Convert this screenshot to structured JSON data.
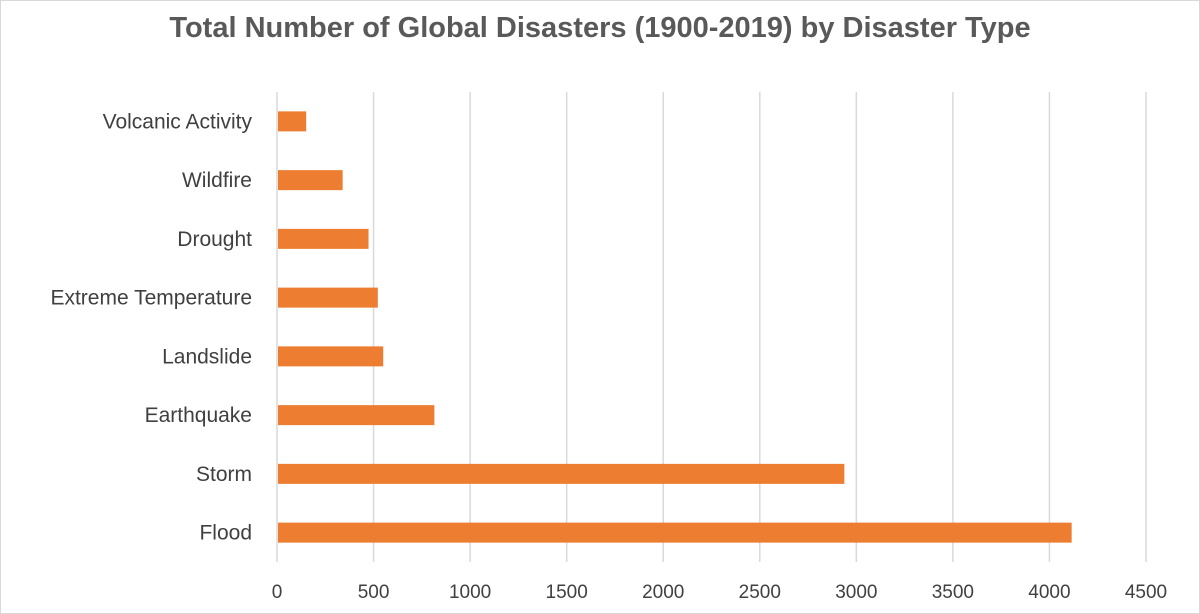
{
  "chart_data": {
    "type": "bar",
    "orientation": "horizontal",
    "title": "Total Number of Global Disasters (1900-2019) by Disaster Type",
    "xlabel": "",
    "ylabel": "",
    "categories": [
      "Volcanic Activity",
      "Wildfire",
      "Drought",
      "Extreme Temperature",
      "Landslide",
      "Earthquake",
      "Storm",
      "Flood"
    ],
    "values": [
      151,
      340,
      474,
      522,
      550,
      815,
      2938,
      4115
    ],
    "xlim": [
      0,
      4500
    ],
    "xticks": [
      "0",
      "500",
      "1000",
      "1500",
      "2000",
      "2500",
      "3000",
      "3500",
      "4000",
      "4500"
    ],
    "grid": "vertical",
    "legend": "none",
    "bar_color": "#ed7d31"
  }
}
